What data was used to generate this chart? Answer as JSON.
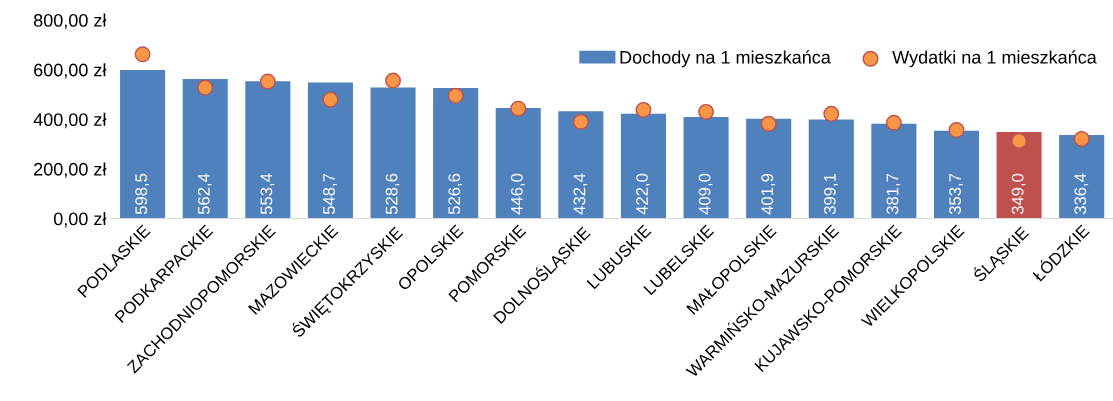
{
  "chart_data": {
    "type": "bar",
    "categories": [
      "PODLASKIE",
      "PODKARPACKIE",
      "ZACHODNIOPOMORSKIE",
      "MAZOWIECKIE",
      "ŚWIĘTOKRZYSKIE",
      "OPOLSKIE",
      "POMORSKIE",
      "DOLNOŚLĄSKIE",
      "LUBUSKIE",
      "LUBELSKIE",
      "MAŁOPOLSKIE",
      "WARMIŃSKO-MAZURSKIE",
      "KUJAWSKO-POMORSKIE",
      "WIELKOPOLSKIE",
      "ŚLĄSKIE",
      "ŁÓDZKIE"
    ],
    "series": [
      {
        "name": "Dochody na 1 mieszkańca",
        "color": "#4f81bd",
        "colors": [
          "#4f81bd",
          "#4f81bd",
          "#4f81bd",
          "#4f81bd",
          "#4f81bd",
          "#4f81bd",
          "#4f81bd",
          "#4f81bd",
          "#4f81bd",
          "#4f81bd",
          "#4f81bd",
          "#4f81bd",
          "#4f81bd",
          "#4f81bd",
          "#c0504d",
          "#4f81bd"
        ],
        "values": [
          598.5,
          562.4,
          553.4,
          548.7,
          528.6,
          526.6,
          446.0,
          432.4,
          422.0,
          409.0,
          401.9,
          399.1,
          381.7,
          353.7,
          349.0,
          336.4
        ],
        "value_labels": [
          "598,5",
          "562,4",
          "553,4",
          "548,7",
          "528,6",
          "526,6",
          "446,0",
          "432,4",
          "422,0",
          "409,0",
          "401,9",
          "399,1",
          "381,7",
          "353,7",
          "349,0",
          "336,4"
        ]
      },
      {
        "name": "Wydatki na 1 mieszkańca",
        "type": "scatter",
        "color": "#f79646",
        "marker": "circle",
        "values": [
          662,
          528,
          552,
          479,
          556,
          495,
          443,
          390,
          438,
          430,
          382,
          422,
          386,
          357,
          313,
          321
        ]
      }
    ],
    "ylim": [
      0,
      800
    ],
    "yticks": [
      {
        "value": 0,
        "label": "0,00 zł"
      },
      {
        "value": 200,
        "label": "200,00 zł"
      },
      {
        "value": 400,
        "label": "400,00 zł"
      },
      {
        "value": 600,
        "label": "600,00 zł"
      },
      {
        "value": 800,
        "label": "800,00 zł"
      }
    ],
    "grid": false,
    "legend": "top right"
  }
}
